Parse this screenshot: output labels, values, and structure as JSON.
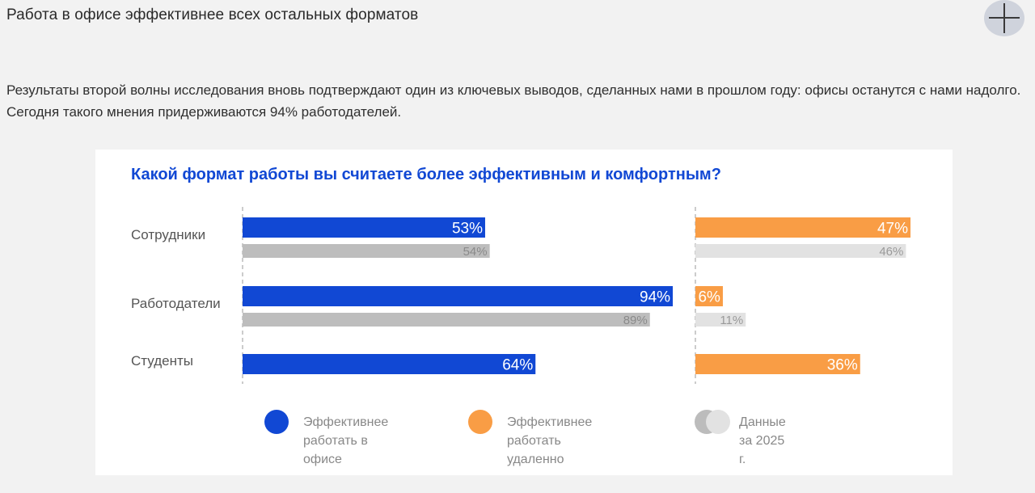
{
  "header": {
    "title": "Работа в офисе эффективнее всех остальных форматов"
  },
  "intro_text": "Результаты второй волны исследования вновь подтверждают один из ключевых выводов, сделанных нами в прошлом году: офисы останутся с нами надолго. Сегодня такого мнения придерживаются 94% работодателей.",
  "icons": {
    "add": "plus-icon"
  },
  "colors": {
    "office": "#1148d4",
    "remote": "#f99d45",
    "office_2025": "#bdbdbd",
    "remote_2025": "#e2e2e2",
    "title": "#1148d4"
  },
  "chart_data": {
    "type": "bar",
    "orientation": "horizontal",
    "title": "Какой формат работы вы считаете более эффективным и комфортным?",
    "categories": [
      "Сотрудники",
      "Работодатели",
      "Студенты"
    ],
    "series": [
      {
        "name": "Эффективнее работать в офисе",
        "values": [
          53,
          94,
          64
        ]
      },
      {
        "name": "Данные за 2025 г.",
        "values": [
          54,
          89,
          null
        ]
      },
      {
        "name": "Эффективнее работать удаленно",
        "values": [
          47,
          6,
          36
        ]
      },
      {
        "name": "Данные за 2025 г.",
        "values": [
          46,
          11,
          null
        ]
      }
    ],
    "unit": "%",
    "xlim": [
      0,
      100
    ],
    "grid": false,
    "legend": {
      "position": "bottom",
      "items": [
        {
          "label": "Эффективнее\nработать в офисе",
          "color": "#1148d4"
        },
        {
          "label": "Эффективнее\nработать удаленно",
          "color": "#f99d45"
        },
        {
          "label": "Данные за 2025 г.",
          "color": "#bdbdbd"
        }
      ]
    }
  }
}
